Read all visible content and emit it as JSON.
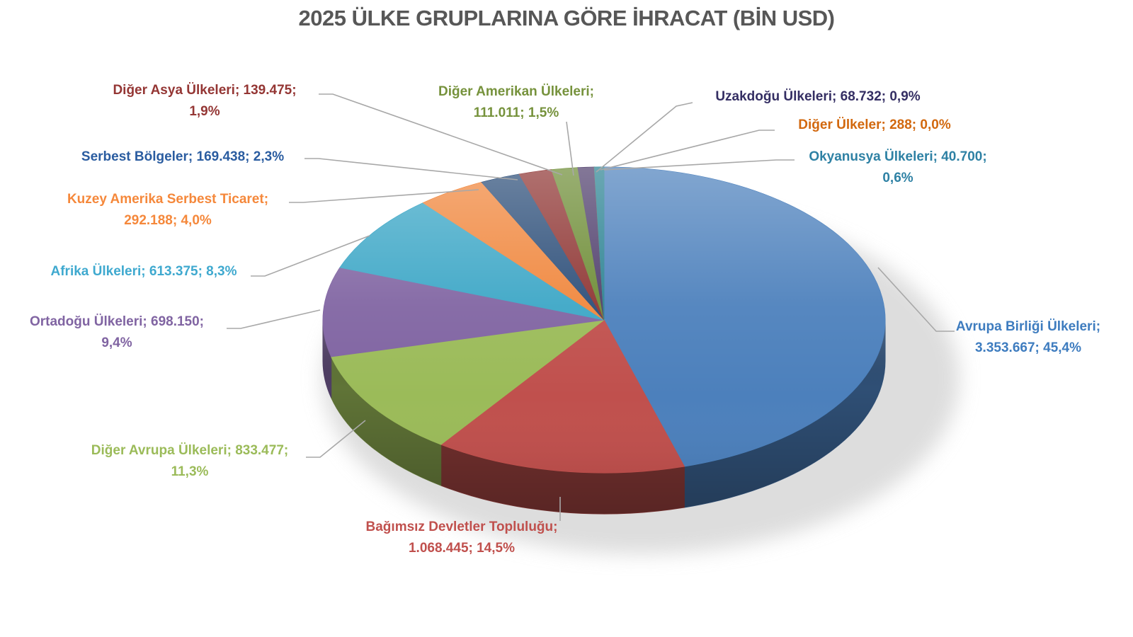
{
  "title": "2025 ÜLKE GRUPLARINA GÖRE İHRACAT (BİN USD)",
  "chart_data": {
    "type": "pie",
    "title": "2025 ÜLKE GRUPLARINA GÖRE İHRACAT (BİN USD)",
    "unit": "BİN USD",
    "year": "2025",
    "style": "3d-pie",
    "legend_position": "none",
    "label_format": "category; value; percent",
    "leader_line_color": "#A8A8A8",
    "title_color": "#575757",
    "slices": [
      {
        "label": "Avrupa Birliği Ülkeleri",
        "value": 3353667,
        "value_text": "3.353.667",
        "pct": 45.4,
        "pct_text": "45,4%",
        "color": "#4C80BC",
        "label_color": "#3E7CBF",
        "label_lines": [
          "Avrupa Birliği Ülkeleri;",
          "3.353.667; 45,4%"
        ]
      },
      {
        "label": "Bağımsız Devletler Topluluğu",
        "value": 1068445,
        "value_text": "1.068.445",
        "pct": 14.5,
        "pct_text": "14,5%",
        "color": "#C0504D",
        "label_color": "#C0504D",
        "label_lines": [
          "Bağımsız Devletler Topluluğu;",
          "1.068.445; 14,5%"
        ]
      },
      {
        "label": "Diğer Avrupa Ülkeleri",
        "value": 833477,
        "value_text": "833.477",
        "pct": 11.3,
        "pct_text": "11,3%",
        "color": "#9BBB59",
        "label_color": "#9BBB59",
        "label_lines": [
          "Diğer Avrupa Ülkeleri; 833.477;",
          "11,3%"
        ]
      },
      {
        "label": "Ortadoğu Ülkeleri",
        "value": 698150,
        "value_text": "698.150",
        "pct": 9.4,
        "pct_text": "9,4%",
        "color": "#8064A2",
        "label_color": "#8064A2",
        "label_lines": [
          "Ortadoğu Ülkeleri; 698.150;",
          "9,4%"
        ]
      },
      {
        "label": "Afrika Ülkeleri",
        "value": 613375,
        "value_text": "613.375",
        "pct": 8.3,
        "pct_text": "8,3%",
        "color": "#3BA6C6",
        "label_color": "#3FA9CF",
        "label_lines": [
          "Afrika Ülkeleri; 613.375; 8,3%"
        ]
      },
      {
        "label": "Kuzey Amerika Serbest Ticaret",
        "value": 292188,
        "value_text": "292.188",
        "pct": 4.0,
        "pct_text": "4,0%",
        "color": "#F0863C",
        "label_color": "#F5883B",
        "label_lines": [
          "Kuzey Amerika Serbest Ticaret;",
          "292.188; 4,0%"
        ]
      },
      {
        "label": "Serbest Bölgeler",
        "value": 169438,
        "value_text": "169.438",
        "pct": 2.3,
        "pct_text": "2,3%",
        "color": "#2B4D78",
        "label_color": "#2A5CA0",
        "label_lines": [
          "Serbest Bölgeler; 169.438; 2,3%"
        ]
      },
      {
        "label": "Diğer Asya Ülkeleri",
        "value": 139475,
        "value_text": "139.475",
        "pct": 1.9,
        "pct_text": "1,9%",
        "color": "#8E3432",
        "label_color": "#943634",
        "label_lines": [
          "Diğer Asya Ülkeleri; 139.475;",
          "1,9%"
        ]
      },
      {
        "label": "Diğer Amerikan Ülkeleri",
        "value": 111011,
        "value_text": "111.011",
        "pct": 1.5,
        "pct_text": "1,5%",
        "color": "#6D8C35",
        "label_color": "#76923C",
        "label_lines": [
          "Diğer Amerikan Ülkeleri;",
          "111.011; 1,5%"
        ]
      },
      {
        "label": "Uzakdoğu Ülkeleri",
        "value": 68732,
        "value_text": "68.732",
        "pct": 0.9,
        "pct_text": "0,9%",
        "color": "#4E3D6B",
        "label_color": "#342E63",
        "label_lines": [
          "Uzakdoğu Ülkeleri; 68.732; 0,9%"
        ]
      },
      {
        "label": "Diğer Ülkeler",
        "value": 288,
        "value_text": "288",
        "pct": 0.0,
        "pct_text": "0,0%",
        "color": "#B65708",
        "label_color": "#D2680E",
        "label_lines": [
          "Diğer Ülkeler; 288; 0,0%"
        ]
      },
      {
        "label": "Okyanusya Ülkeleri",
        "value": 40700,
        "value_text": "40.700",
        "pct": 0.6,
        "pct_text": "0,6%",
        "color": "#2B8292",
        "label_color": "#2E81A4",
        "label_lines": [
          "Okyanusya Ülkeleri; 40.700;",
          "0,6%"
        ]
      }
    ]
  }
}
